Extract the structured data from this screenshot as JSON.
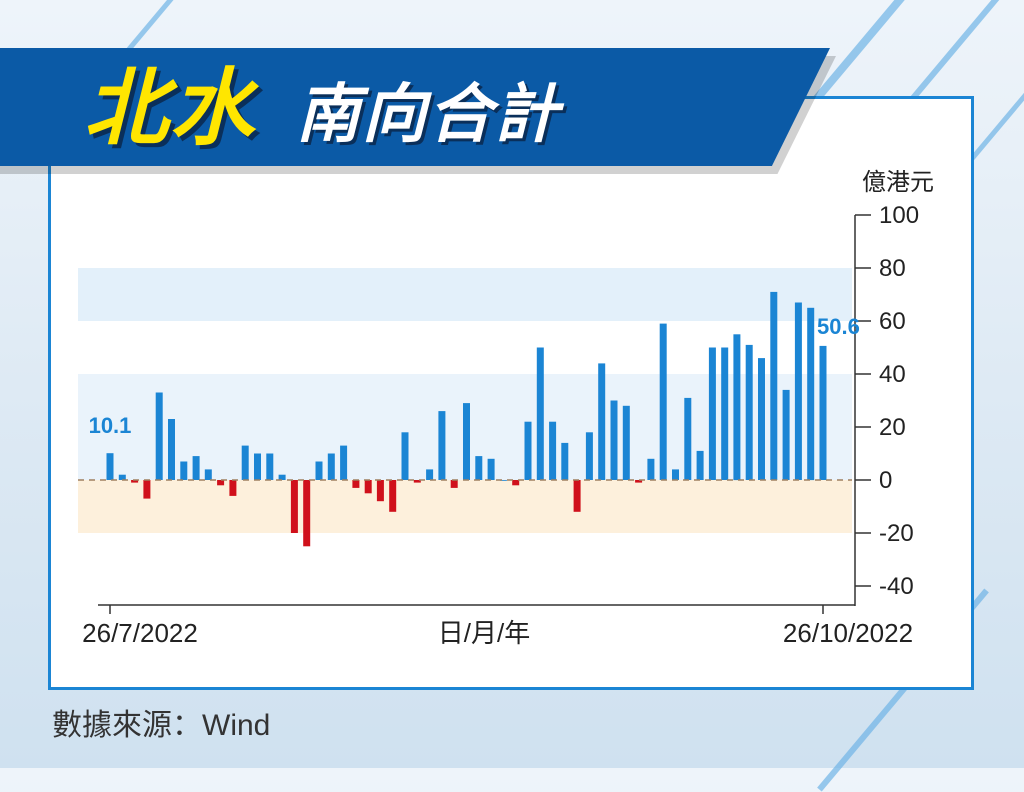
{
  "header": {
    "title_main": "北水",
    "title_sub": "南向合計"
  },
  "source_text": "數據來源：Wind",
  "colors": {
    "positive": "#1b85d4",
    "negative": "#d0101b",
    "banner": "#0b5aa6",
    "title_main": "#ffe600"
  },
  "chart_data": {
    "type": "bar",
    "title": "北水南向合計",
    "xlabel": "日/月/年",
    "ylabel": "億港元",
    "ylim": [
      -40,
      100
    ],
    "yticks": [
      100,
      80,
      60,
      40,
      20,
      0,
      -20,
      -40
    ],
    "x_tick_labels": [
      "26/7/2022",
      "26/10/2022"
    ],
    "grid": false,
    "values": [
      10.1,
      2,
      -1,
      -7,
      33,
      23,
      7,
      9,
      4,
      -2,
      -6,
      13,
      10,
      10,
      2,
      -20,
      -25,
      7,
      10,
      13,
      -3,
      -5,
      -8,
      -12,
      18,
      -1,
      4,
      26,
      -3,
      29,
      9,
      8,
      0,
      -2,
      22,
      50,
      22,
      14,
      -12,
      18,
      44,
      30,
      28,
      -1,
      8,
      59,
      4,
      31,
      11,
      50,
      50,
      55,
      51,
      46,
      71,
      34,
      67,
      65,
      50.6
    ],
    "data_labels": [
      {
        "index": 0,
        "text": "10.1"
      },
      {
        "index": 58,
        "text": "50.6"
      }
    ]
  }
}
